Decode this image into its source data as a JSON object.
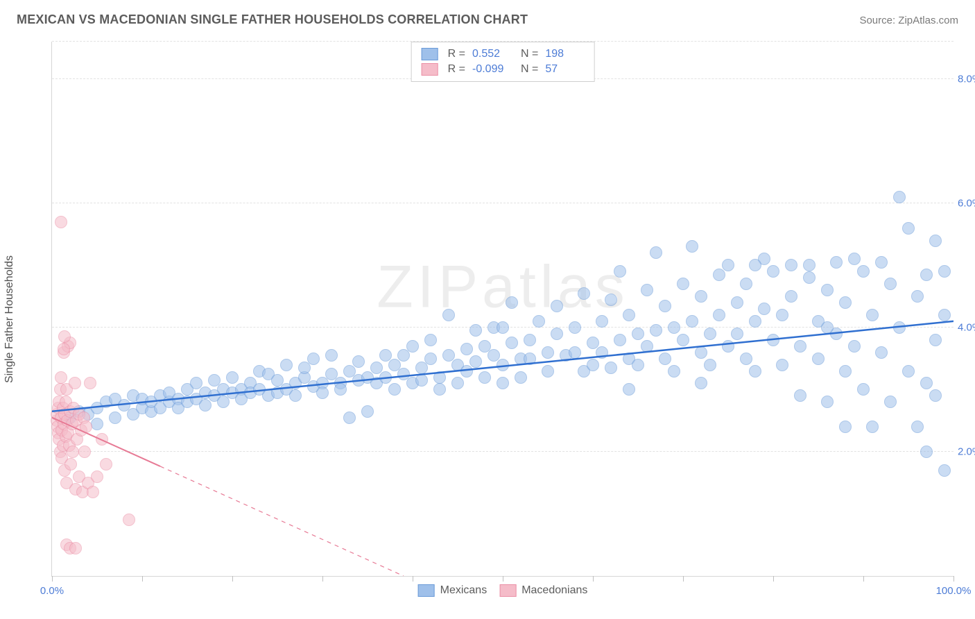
{
  "title": "MEXICAN VS MACEDONIAN SINGLE FATHER HOUSEHOLDS CORRELATION CHART",
  "source": "Source: ZipAtlas.com",
  "watermark": "ZIPatlas",
  "ylabel": "Single Father Households",
  "chart": {
    "type": "scatter",
    "background_color": "#ffffff",
    "grid_color": "#e2e2e2",
    "axis_color": "#d6d6d6",
    "tick_color": "#bfbfbf",
    "axis_label_color": "#4d7cd6",
    "text_color": "#5c5c5c",
    "ylabel_fontsize": 16,
    "title_fontsize": 18,
    "tick_fontsize": 15,
    "xlim": [
      0,
      100
    ],
    "ylim": [
      0,
      8.6
    ],
    "xtick_step": 10,
    "xtick_labels": {
      "0": "0.0%",
      "100": "100.0%"
    },
    "ytick_positions": [
      2.0,
      4.0,
      6.0,
      8.0
    ],
    "ytick_labels": [
      "2.0%",
      "4.0%",
      "6.0%",
      "8.0%"
    ],
    "point_radius": 9,
    "point_opacity": 0.55,
    "point_border_width": 1.2,
    "series": [
      {
        "name": "Mexicans",
        "fill_color": "#9fc0ea",
        "border_color": "#6a9ad8",
        "trend_color": "#2f6fd0",
        "trend_width": 2.5,
        "trend_dash": "none",
        "R": 0.552,
        "N": 198,
        "trend": {
          "x1": 0,
          "y1": 2.65,
          "x2": 100,
          "y2": 4.1
        },
        "points": [
          [
            2,
            2.55
          ],
          [
            3,
            2.65
          ],
          [
            4,
            2.6
          ],
          [
            5,
            2.7
          ],
          [
            5,
            2.45
          ],
          [
            6,
            2.8
          ],
          [
            7,
            2.85
          ],
          [
            7,
            2.55
          ],
          [
            8,
            2.75
          ],
          [
            9,
            2.6
          ],
          [
            9,
            2.9
          ],
          [
            10,
            2.7
          ],
          [
            10,
            2.85
          ],
          [
            11,
            2.65
          ],
          [
            11,
            2.8
          ],
          [
            12,
            2.9
          ],
          [
            12,
            2.7
          ],
          [
            13,
            2.8
          ],
          [
            13,
            2.95
          ],
          [
            14,
            2.85
          ],
          [
            14,
            2.7
          ],
          [
            15,
            3.0
          ],
          [
            15,
            2.8
          ],
          [
            16,
            2.85
          ],
          [
            16,
            3.1
          ],
          [
            17,
            2.95
          ],
          [
            17,
            2.75
          ],
          [
            18,
            2.9
          ],
          [
            18,
            3.15
          ],
          [
            19,
            3.0
          ],
          [
            19,
            2.8
          ],
          [
            20,
            2.95
          ],
          [
            20,
            3.2
          ],
          [
            21,
            3.0
          ],
          [
            21,
            2.85
          ],
          [
            22,
            3.1
          ],
          [
            22,
            2.95
          ],
          [
            23,
            3.3
          ],
          [
            23,
            3.0
          ],
          [
            24,
            2.9
          ],
          [
            24,
            3.25
          ],
          [
            25,
            3.15
          ],
          [
            25,
            2.95
          ],
          [
            26,
            3.0
          ],
          [
            26,
            3.4
          ],
          [
            27,
            3.1
          ],
          [
            27,
            2.9
          ],
          [
            28,
            3.2
          ],
          [
            28,
            3.35
          ],
          [
            29,
            3.05
          ],
          [
            29,
            3.5
          ],
          [
            30,
            3.1
          ],
          [
            30,
            2.95
          ],
          [
            31,
            3.25
          ],
          [
            31,
            3.55
          ],
          [
            32,
            3.1
          ],
          [
            32,
            3.0
          ],
          [
            33,
            3.3
          ],
          [
            33,
            2.55
          ],
          [
            34,
            3.15
          ],
          [
            34,
            3.45
          ],
          [
            35,
            3.2
          ],
          [
            35,
            2.65
          ],
          [
            36,
            3.35
          ],
          [
            36,
            3.1
          ],
          [
            37,
            3.55
          ],
          [
            37,
            3.2
          ],
          [
            38,
            3.0
          ],
          [
            38,
            3.4
          ],
          [
            39,
            3.25
          ],
          [
            39,
            3.55
          ],
          [
            40,
            3.1
          ],
          [
            40,
            3.7
          ],
          [
            41,
            3.35
          ],
          [
            41,
            3.15
          ],
          [
            42,
            3.5
          ],
          [
            42,
            3.8
          ],
          [
            43,
            3.2
          ],
          [
            43,
            3.0
          ],
          [
            44,
            3.55
          ],
          [
            44,
            4.2
          ],
          [
            45,
            3.4
          ],
          [
            45,
            3.1
          ],
          [
            46,
            3.65
          ],
          [
            46,
            3.3
          ],
          [
            47,
            3.95
          ],
          [
            47,
            3.45
          ],
          [
            48,
            3.2
          ],
          [
            48,
            3.7
          ],
          [
            49,
            3.55
          ],
          [
            49,
            4.0
          ],
          [
            50,
            3.4
          ],
          [
            50,
            3.1
          ],
          [
            51,
            3.75
          ],
          [
            51,
            4.4
          ],
          [
            52,
            3.5
          ],
          [
            52,
            3.2
          ],
          [
            53,
            3.8
          ],
          [
            53,
            3.5
          ],
          [
            54,
            4.1
          ],
          [
            55,
            3.6
          ],
          [
            55,
            3.3
          ],
          [
            56,
            3.9
          ],
          [
            56,
            4.35
          ],
          [
            57,
            3.55
          ],
          [
            58,
            4.0
          ],
          [
            58,
            3.6
          ],
          [
            59,
            3.3
          ],
          [
            59,
            4.55
          ],
          [
            60,
            3.75
          ],
          [
            60,
            3.4
          ],
          [
            61,
            4.1
          ],
          [
            61,
            3.6
          ],
          [
            62,
            3.35
          ],
          [
            62,
            4.45
          ],
          [
            63,
            3.8
          ],
          [
            63,
            4.9
          ],
          [
            64,
            3.5
          ],
          [
            64,
            4.2
          ],
          [
            65,
            3.9
          ],
          [
            65,
            3.4
          ],
          [
            66,
            4.6
          ],
          [
            66,
            3.7
          ],
          [
            67,
            5.2
          ],
          [
            67,
            3.95
          ],
          [
            68,
            3.5
          ],
          [
            68,
            4.35
          ],
          [
            69,
            4.0
          ],
          [
            69,
            3.3
          ],
          [
            70,
            4.7
          ],
          [
            70,
            3.8
          ],
          [
            71,
            5.3
          ],
          [
            71,
            4.1
          ],
          [
            72,
            3.6
          ],
          [
            72,
            4.5
          ],
          [
            73,
            3.9
          ],
          [
            73,
            3.4
          ],
          [
            74,
            4.85
          ],
          [
            74,
            4.2
          ],
          [
            75,
            3.7
          ],
          [
            75,
            5.0
          ],
          [
            76,
            4.4
          ],
          [
            76,
            3.9
          ],
          [
            77,
            3.5
          ],
          [
            77,
            4.7
          ],
          [
            78,
            4.1
          ],
          [
            78,
            3.3
          ],
          [
            79,
            5.1
          ],
          [
            79,
            4.3
          ],
          [
            80,
            3.8
          ],
          [
            80,
            4.9
          ],
          [
            81,
            4.2
          ],
          [
            81,
            3.4
          ],
          [
            82,
            5.0
          ],
          [
            82,
            4.5
          ],
          [
            83,
            3.7
          ],
          [
            83,
            2.9
          ],
          [
            84,
            4.8
          ],
          [
            84,
            5.0
          ],
          [
            85,
            4.1
          ],
          [
            85,
            3.5
          ],
          [
            86,
            4.6
          ],
          [
            86,
            2.8
          ],
          [
            87,
            5.05
          ],
          [
            87,
            3.9
          ],
          [
            88,
            3.3
          ],
          [
            88,
            4.4
          ],
          [
            89,
            5.1
          ],
          [
            89,
            3.7
          ],
          [
            90,
            4.9
          ],
          [
            90,
            3.0
          ],
          [
            91,
            4.2
          ],
          [
            91,
            2.4
          ],
          [
            92,
            5.05
          ],
          [
            92,
            3.6
          ],
          [
            93,
            4.7
          ],
          [
            93,
            2.8
          ],
          [
            94,
            6.1
          ],
          [
            94,
            4.0
          ],
          [
            95,
            3.3
          ],
          [
            95,
            5.6
          ],
          [
            96,
            4.5
          ],
          [
            96,
            2.4
          ],
          [
            97,
            4.85
          ],
          [
            97,
            3.1
          ],
          [
            97,
            2.0
          ],
          [
            98,
            5.4
          ],
          [
            98,
            3.8
          ],
          [
            98,
            2.9
          ],
          [
            99,
            1.7
          ],
          [
            99,
            4.2
          ],
          [
            99,
            4.9
          ],
          [
            88,
            2.4
          ],
          [
            86,
            4.0
          ],
          [
            78,
            5.0
          ],
          [
            72,
            3.1
          ],
          [
            64,
            3.0
          ],
          [
            50,
            4.0
          ]
        ]
      },
      {
        "name": "Macedonians",
        "fill_color": "#f5bcc9",
        "border_color": "#eb8fa6",
        "trend_color": "#e77a95",
        "trend_width": 2,
        "trend_dash": "6 6",
        "trend_solid_until_x": 12,
        "R": -0.099,
        "N": 57,
        "trend": {
          "x1": 0,
          "y1": 2.55,
          "x2": 39,
          "y2": 0.0
        },
        "points": [
          [
            0.5,
            2.5
          ],
          [
            0.5,
            2.6
          ],
          [
            0.6,
            2.4
          ],
          [
            0.7,
            2.7
          ],
          [
            0.7,
            2.3
          ],
          [
            0.8,
            2.8
          ],
          [
            0.8,
            2.2
          ],
          [
            0.9,
            3.0
          ],
          [
            0.9,
            2.0
          ],
          [
            1.0,
            2.55
          ],
          [
            1.0,
            3.2
          ],
          [
            1.1,
            2.35
          ],
          [
            1.1,
            1.9
          ],
          [
            1.2,
            2.7
          ],
          [
            1.2,
            2.1
          ],
          [
            1.3,
            3.6
          ],
          [
            1.3,
            2.45
          ],
          [
            1.4,
            1.7
          ],
          [
            1.4,
            2.6
          ],
          [
            1.5,
            2.25
          ],
          [
            1.5,
            2.8
          ],
          [
            1.6,
            3.0
          ],
          [
            1.6,
            1.5
          ],
          [
            1.7,
            2.5
          ],
          [
            1.8,
            2.3
          ],
          [
            1.8,
            3.7
          ],
          [
            1.9,
            2.1
          ],
          [
            2.0,
            2.65
          ],
          [
            2.0,
            3.75
          ],
          [
            2.1,
            1.8
          ],
          [
            2.2,
            2.45
          ],
          [
            2.3,
            2.0
          ],
          [
            2.4,
            2.7
          ],
          [
            2.5,
            3.1
          ],
          [
            2.6,
            1.4
          ],
          [
            2.7,
            2.5
          ],
          [
            2.8,
            2.2
          ],
          [
            3.0,
            2.6
          ],
          [
            3.0,
            1.6
          ],
          [
            3.2,
            2.35
          ],
          [
            3.4,
            1.35
          ],
          [
            3.5,
            2.55
          ],
          [
            3.6,
            2.0
          ],
          [
            3.8,
            2.4
          ],
          [
            4.0,
            1.5
          ],
          [
            4.2,
            3.1
          ],
          [
            1.0,
            5.7
          ],
          [
            4.5,
            1.35
          ],
          [
            1.6,
            0.5
          ],
          [
            2.0,
            0.45
          ],
          [
            2.6,
            0.45
          ],
          [
            1.4,
            3.85
          ],
          [
            1.3,
            3.65
          ],
          [
            8.5,
            0.9
          ],
          [
            5.0,
            1.6
          ],
          [
            5.5,
            2.2
          ],
          [
            6.0,
            1.8
          ]
        ]
      }
    ]
  }
}
